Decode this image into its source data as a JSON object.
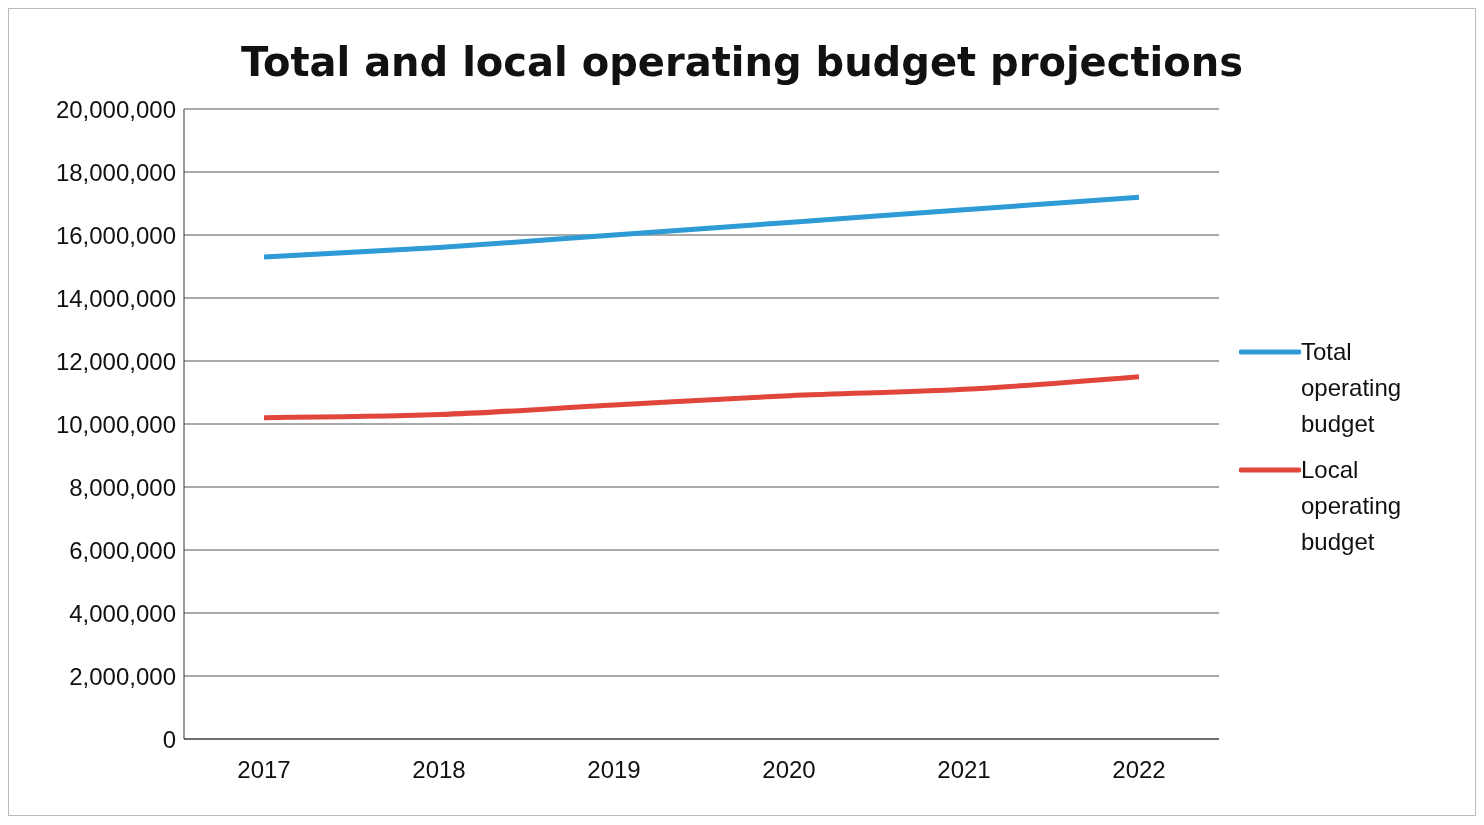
{
  "chart_data": {
    "type": "line",
    "title": "Total and local operating budget projections",
    "categories": [
      "2017",
      "2018",
      "2019",
      "2020",
      "2021",
      "2022"
    ],
    "series": [
      {
        "name": "Total operating budget",
        "color": "#2e9bd6",
        "values": [
          15300000,
          15600000,
          16000000,
          16400000,
          16800000,
          17200000
        ]
      },
      {
        "name": "Local operating budget",
        "color": "#e0463c",
        "values": [
          10200000,
          10300000,
          10600000,
          10900000,
          11100000,
          11500000
        ]
      }
    ],
    "ylim": [
      0,
      20000000
    ],
    "yticks": [
      0,
      {
        "value": 2000000,
        "label": "2,000,000"
      },
      {
        "value": 4000000,
        "label": "4,000,000"
      },
      {
        "value": 6000000,
        "label": "6,000,000"
      },
      {
        "value": 8000000,
        "label": "8,000,000"
      },
      {
        "value": 10000000,
        "label": "10,000,000"
      },
      {
        "value": 12000000,
        "label": "12,000,000"
      },
      {
        "value": 14000000,
        "label": "14,000,000"
      },
      {
        "value": 16000000,
        "label": "16,000,000"
      },
      {
        "value": 18000000,
        "label": "18,000,000"
      },
      {
        "value": 20000000,
        "label": "20,000,000"
      }
    ],
    "grid": "y",
    "legend": "right",
    "marker": "none",
    "line_style": "solid"
  }
}
